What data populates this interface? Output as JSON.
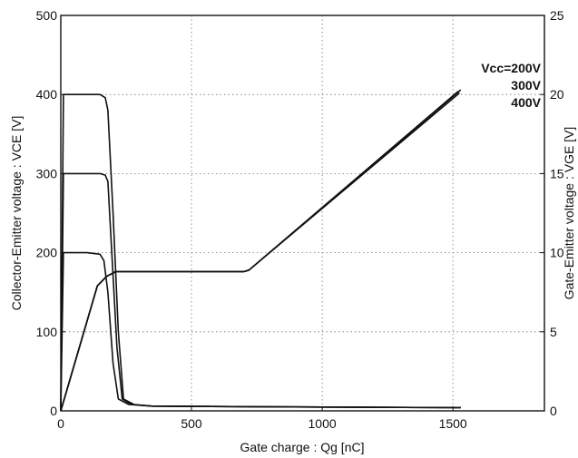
{
  "chart_data": {
    "type": "line",
    "xlabel": "Gate charge : Qg [nC]",
    "ylabel_left": "Collector-Emitter voltage : VCE [V]",
    "ylabel_right": "Gate-Emitter voltage : VGE [V]",
    "xlim": [
      0,
      1850
    ],
    "ylim_left": [
      0,
      500
    ],
    "ylim_right": [
      0,
      25
    ],
    "x_ticks": [
      0,
      500,
      1000,
      1500
    ],
    "y_ticks_left": [
      0,
      100,
      200,
      300,
      400,
      500
    ],
    "y_ticks_right": [
      0,
      5,
      10,
      15,
      20,
      25
    ],
    "grid": true,
    "annotations": [
      "Vcc=200V",
      "300V",
      "400V"
    ],
    "vce_series": [
      {
        "x": [
          0,
          10,
          100,
          150,
          165,
          180,
          200,
          220,
          260,
          350,
          800,
          1530
        ],
        "y": [
          0,
          200,
          200,
          198,
          190,
          150,
          60,
          15,
          8,
          6,
          5,
          4
        ]
      },
      {
        "x": [
          0,
          10,
          150,
          170,
          180,
          195,
          215,
          235,
          270,
          350,
          800,
          1530
        ],
        "y": [
          0,
          300,
          300,
          298,
          290,
          200,
          80,
          15,
          8,
          6,
          5,
          4
        ]
      },
      {
        "x": [
          0,
          10,
          150,
          170,
          180,
          200,
          220,
          240,
          280,
          350,
          800,
          1530
        ],
        "y": [
          0,
          400,
          400,
          396,
          380,
          250,
          100,
          15,
          8,
          6,
          5,
          4
        ]
      }
    ],
    "vge_series": [
      {
        "x": [
          0,
          140,
          175,
          210,
          240,
          700,
          720,
          1520
        ],
        "y": [
          0,
          7.9,
          8.5,
          8.8,
          8.8,
          8.8,
          8.9,
          20.2
        ]
      },
      {
        "x": [
          0,
          140,
          175,
          210,
          240,
          700,
          720,
          1525
        ],
        "y": [
          0,
          7.9,
          8.5,
          8.8,
          8.8,
          8.8,
          8.9,
          20.1
        ]
      },
      {
        "x": [
          0,
          140,
          175,
          210,
          240,
          700,
          720,
          1530
        ],
        "y": [
          0,
          7.9,
          8.5,
          8.8,
          8.8,
          8.8,
          8.9,
          20.3
        ]
      }
    ]
  }
}
